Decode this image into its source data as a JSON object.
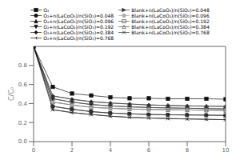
{
  "chart_data": {
    "type": "line",
    "ylabel": "C/C₀",
    "x": [
      0,
      1,
      2,
      3,
      4,
      5,
      6,
      7,
      8,
      9,
      10
    ],
    "xlim": [
      0,
      10
    ],
    "ylim": [
      0.0,
      1.0
    ],
    "xticks": [
      0,
      2,
      4,
      6,
      8,
      10
    ],
    "yticks": [
      {
        "value": 0.0,
        "label": "0.0"
      },
      0.2,
      0.4,
      0.6,
      0.8
    ],
    "grid": false,
    "legend": "top",
    "series": [
      {
        "name": "O₂",
        "color": "#111111",
        "marker": "square",
        "values": [
          1.0,
          0.575,
          0.505,
          0.485,
          0.465,
          0.455,
          0.455,
          0.45,
          0.45,
          0.45,
          0.445
        ]
      },
      {
        "name": "O₂+n(LaCoO₃)/n(SiO₂)=0.048",
        "color": "#111111",
        "marker": "circle",
        "values": [
          1.0,
          0.37,
          0.34,
          0.315,
          0.3,
          0.292,
          0.285,
          0.282,
          0.28,
          0.278,
          0.275
        ]
      },
      {
        "name": "O₂+n(LaCoO₃)/n(SiO₂)=0.096",
        "color": "#111111",
        "marker": "triangle-up",
        "values": [
          1.0,
          0.415,
          0.385,
          0.36,
          0.35,
          0.342,
          0.338,
          0.335,
          0.332,
          0.33,
          0.328
        ]
      },
      {
        "name": "O₂+n(LaCoO₃)/n(SiO₂)=0.192",
        "color": "#111111",
        "marker": "triangle-down",
        "values": [
          1.0,
          0.45,
          0.415,
          0.39,
          0.375,
          0.365,
          0.358,
          0.354,
          0.35,
          0.347,
          0.344
        ]
      },
      {
        "name": "O₂+n(LaCoO₃)/n(SiO₂)=0.384",
        "color": "#111111",
        "marker": "diamond",
        "values": [
          1.0,
          0.48,
          0.445,
          0.42,
          0.405,
          0.395,
          0.385,
          0.38,
          0.375,
          0.372,
          0.37
        ]
      },
      {
        "name": "O₂+n(LaCoO₃)/n(SiO₂)=0.768",
        "color": "#111111",
        "marker": "tri-left",
        "values": [
          1.0,
          0.335,
          0.305,
          0.285,
          0.267,
          0.255,
          0.248,
          0.242,
          0.238,
          0.234,
          0.23
        ]
      },
      {
        "name": "Blank+n(LaCoO₃)/n(SiO₂)=0.048",
        "color": "#333333",
        "marker": "triangle-right",
        "values": [
          null,
          0.37,
          0.34,
          0.315,
          0.3,
          0.292,
          0.285,
          0.282,
          0.28,
          0.278,
          0.275
        ]
      },
      {
        "name": "Blank+n(LaCoO₃)/n(SiO₂)=0.096",
        "color": "#aaaaaa",
        "marker": "circle",
        "values": [
          null,
          0.415,
          0.385,
          0.36,
          0.35,
          0.342,
          0.338,
          0.335,
          0.332,
          0.33,
          0.328
        ]
      },
      {
        "name": "Blank+n(LaCoO₃)/n(SiO₂)=0.192",
        "color": "#555555",
        "marker": "square-open",
        "values": [
          null,
          0.45,
          0.415,
          0.39,
          0.375,
          0.365,
          0.358,
          0.354,
          0.35,
          0.347,
          0.344
        ]
      },
      {
        "name": "Blank+n(LaCoO₃)/n(SiO₂)=0.384",
        "color": "#555555",
        "marker": "triangle-up-open",
        "values": [
          null,
          0.48,
          0.445,
          0.42,
          0.405,
          0.395,
          0.385,
          0.38,
          0.375,
          0.372,
          0.37
        ]
      },
      {
        "name": "Blank+n(LaCoO₃)/n(SiO₂)=0.768",
        "color": "#333333",
        "marker": "x",
        "values": [
          null,
          0.335,
          0.305,
          0.285,
          0.267,
          0.255,
          0.248,
          0.242,
          0.238,
          0.234,
          0.23
        ]
      }
    ]
  }
}
